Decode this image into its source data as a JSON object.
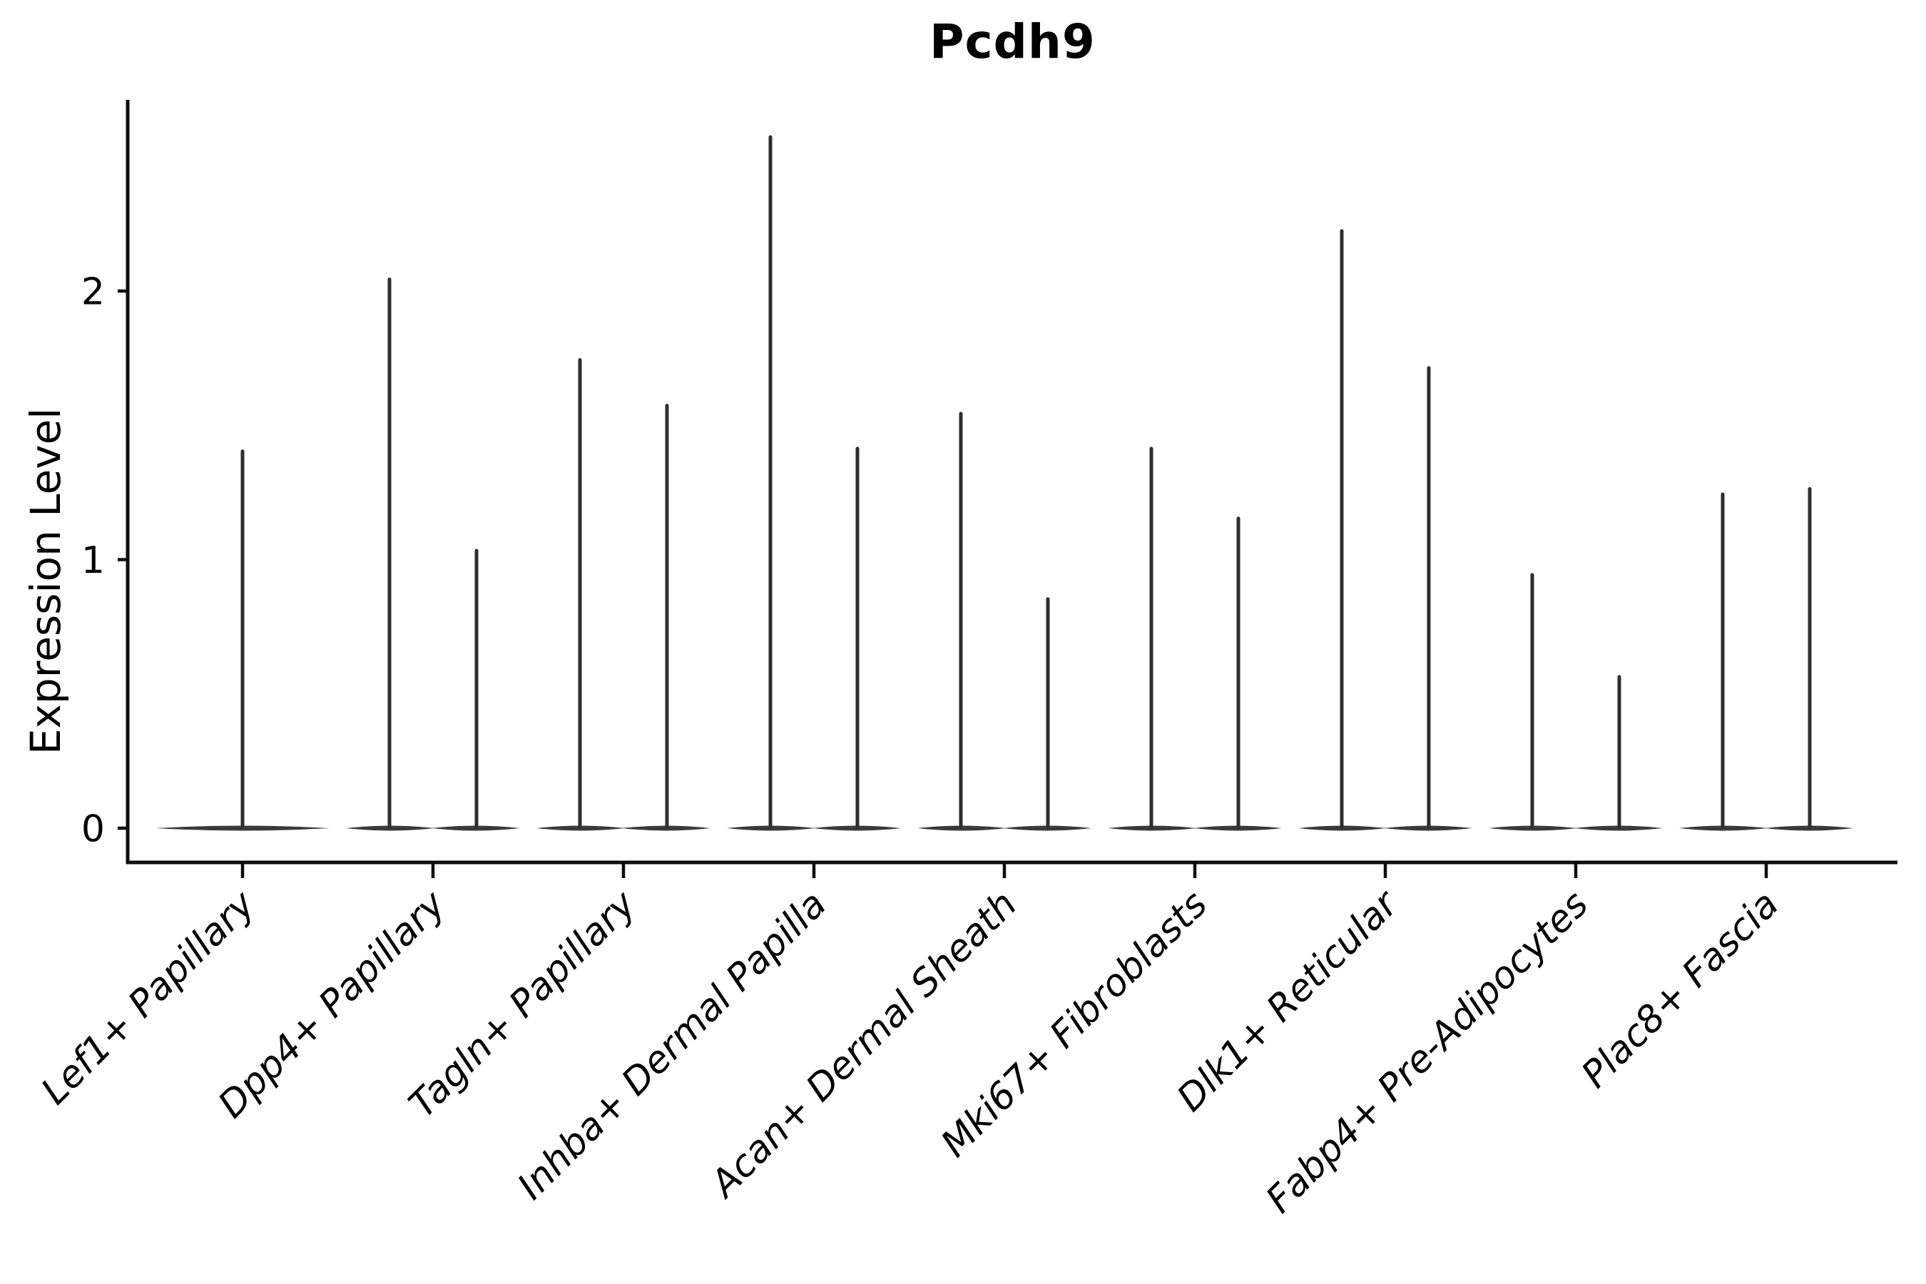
{
  "title": "Pcdh9",
  "chart_data": {
    "type": "violin",
    "title": "Pcdh9",
    "xlabel": "",
    "ylabel": "Expression Level",
    "yticks": [
      "0",
      "1",
      "2"
    ],
    "ylim": [
      -0.13,
      2.71
    ],
    "grid": false,
    "legend": "none",
    "style": "collapsed violin plot (single-cell expression); each violin is a flat base at 0 with a thin spike to its maximum",
    "ink_color": "#2e2e2e",
    "body_color": "#3a3a3a",
    "axis_color": "#0d0d0d",
    "categories": [
      "Lef1+ Papillary",
      "Dpp4+ Papillary",
      "Tagln+ Papillary",
      "Inhba+ Dermal Papilla",
      "Acan+ Dermal Sheath",
      "Mki67+ Fibroblasts",
      "Dlk1+ Reticular",
      "Fabp4+ Pre-Adipocytes",
      "Plac8+ Fascia"
    ],
    "violins": [
      {
        "category": "Lef1+ Papillary",
        "maxima": [
          1.41
        ]
      },
      {
        "category": "Dpp4+ Papillary",
        "maxima": [
          2.05,
          1.04
        ]
      },
      {
        "category": "Tagln+ Papillary",
        "maxima": [
          1.75,
          1.58
        ]
      },
      {
        "category": "Inhba+ Dermal Papilla",
        "maxima": [
          2.58,
          1.42
        ]
      },
      {
        "category": "Acan+ Dermal Sheath",
        "maxima": [
          1.55,
          0.86
        ]
      },
      {
        "category": "Mki67+ Fibroblasts",
        "maxima": [
          1.42,
          1.16
        ]
      },
      {
        "category": "Dlk1+ Reticular",
        "maxima": [
          2.23,
          1.72
        ]
      },
      {
        "category": "Fabp4+ Pre-Adipocytes",
        "maxima": [
          0.95,
          0.57
        ]
      },
      {
        "category": "Plac8+ Fascia",
        "maxima": [
          1.25,
          1.27
        ]
      }
    ]
  }
}
